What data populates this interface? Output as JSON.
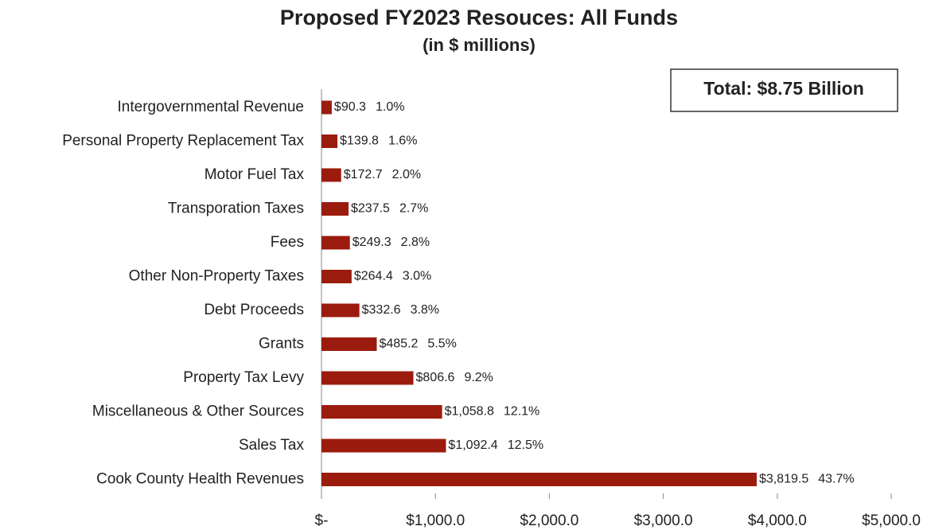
{
  "chart_data": {
    "type": "bar",
    "orientation": "horizontal",
    "title": "Proposed FY2023 Resouces: All Funds",
    "subtitle": "(in $ millions)",
    "annotation": "Total: $8.75 Billion",
    "categories": [
      "Intergovernmental Revenue",
      "Personal Property Replacement Tax",
      "Motor Fuel Tax",
      "Transporation Taxes",
      "Fees",
      "Other Non-Property Taxes",
      "Debt Proceeds",
      "Grants",
      "Property Tax Levy",
      "Miscellaneous & Other Sources",
      "Sales Tax",
      "Cook County Health Revenues"
    ],
    "values": [
      90.3,
      139.8,
      172.7,
      237.5,
      249.3,
      264.4,
      332.6,
      485.2,
      806.6,
      1058.8,
      1092.4,
      3819.5
    ],
    "value_labels": [
      "$90.3",
      "$139.8",
      "$172.7",
      "$237.5",
      "$249.3",
      "$264.4",
      "$332.6",
      "$485.2",
      "$806.6",
      "$1,058.8",
      "$1,092.4",
      "$3,819.5"
    ],
    "share_labels": [
      "1.0%",
      "1.6%",
      "2.0%",
      "2.7%",
      "2.8%",
      "3.0%",
      "3.8%",
      "5.5%",
      "9.2%",
      "12.1%",
      "12.5%",
      "43.7%"
    ],
    "color": "#9b1c0e",
    "xlim": [
      0,
      5000
    ],
    "xticks": [
      {
        "value": 0,
        "label": "$-"
      },
      {
        "value": 1000,
        "label": "$1,000.0"
      },
      {
        "value": 2000,
        "label": "$2,000.0"
      },
      {
        "value": 3000,
        "label": "$3,000.0"
      },
      {
        "value": 4000,
        "label": "$4,000.0"
      },
      {
        "value": 5000,
        "label": "$5,000.0"
      }
    ],
    "grid": false
  }
}
